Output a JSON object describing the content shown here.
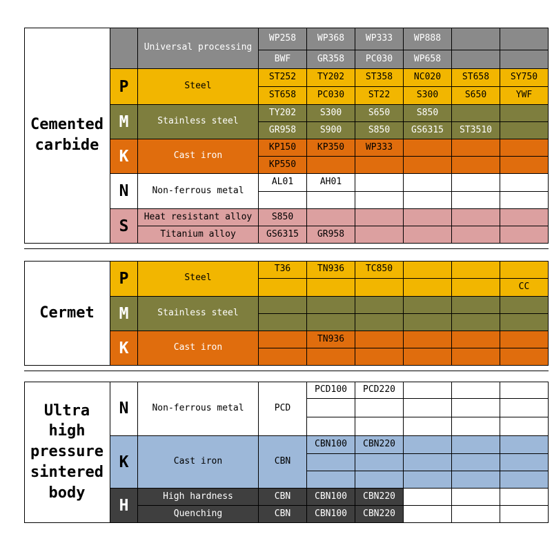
{
  "colors": {
    "gray": "#8A8A8A",
    "gold": "#F2B600",
    "olive": "#7E7E3E",
    "orange": "#E06D0D",
    "pink": "#DCA0A0",
    "white": "#FFFFFF",
    "blue": "#9DB8D9",
    "dark": "#3F3F3F"
  },
  "tables": [
    {
      "category": "Cemented\ncarbide",
      "groups": [
        {
          "letter": "",
          "bg": "gray",
          "label_color": "light",
          "grade_color": "light",
          "desc": "Universal processing",
          "rows": [
            {
              "grades": [
                "WP258",
                "WP368",
                "WP333",
                "WP888",
                "",
                ""
              ]
            },
            {
              "grades": [
                "BWF",
                "GR358",
                "PC030",
                "WP658",
                "",
                ""
              ]
            }
          ]
        },
        {
          "letter": "P",
          "bg": "gold",
          "label_color": "dark",
          "grade_color": "dark",
          "desc": "Steel",
          "rows": [
            {
              "grades": [
                "ST252",
                "TY202",
                "ST358",
                "NC020",
                "ST658",
                "SY750"
              ]
            },
            {
              "grades": [
                "ST658",
                "PC030",
                "ST22",
                "S300",
                "S650",
                "YWF"
              ]
            }
          ]
        },
        {
          "letter": "M",
          "bg": "olive",
          "label_color": "light",
          "grade_color": "light",
          "desc": "Stainless steel",
          "rows": [
            {
              "grades": [
                "TY202",
                "S300",
                "S650",
                "S850",
                "",
                ""
              ]
            },
            {
              "grades": [
                "GR958",
                "S900",
                "S850",
                "GS6315",
                "ST3510",
                ""
              ]
            }
          ]
        },
        {
          "letter": "K",
          "bg": "orange",
          "label_color": "light",
          "grade_color": "dark",
          "desc": "Cast iron",
          "rows": [
            {
              "grades": [
                "KP150",
                "KP350",
                "WP333",
                "",
                "",
                ""
              ]
            },
            {
              "grades": [
                "KP550",
                "",
                "",
                "",
                "",
                ""
              ]
            }
          ]
        },
        {
          "letter": "N",
          "bg": "white",
          "label_color": "dark",
          "grade_color": "dark",
          "desc": "Non-ferrous metal",
          "rows": [
            {
              "grades": [
                "AL01",
                "AH01",
                "",
                "",
                "",
                ""
              ]
            },
            {
              "grades": [
                "",
                "",
                "",
                "",
                "",
                ""
              ]
            }
          ]
        },
        {
          "letter": "S",
          "bg": "pink",
          "label_color": "dark",
          "grade_color": "dark",
          "rows": [
            {
              "desc": "Heat resistant alloy",
              "grades": [
                "S850",
                "",
                "",
                "",
                "",
                ""
              ]
            },
            {
              "desc": "Titanium alloy",
              "grades": [
                "GS6315",
                "GR958",
                "",
                "",
                "",
                ""
              ]
            }
          ]
        }
      ]
    },
    {
      "category": "Cermet",
      "groups": [
        {
          "letter": "P",
          "bg": "gold",
          "label_color": "dark",
          "grade_color": "dark",
          "desc": "Steel",
          "rows": [
            {
              "grades": [
                "T36",
                "TN936",
                "TC850",
                "",
                "",
                ""
              ]
            },
            {
              "grades": [
                "",
                "",
                "",
                "",
                "",
                "CC"
              ]
            }
          ]
        },
        {
          "letter": "M",
          "bg": "olive",
          "label_color": "light",
          "grade_color": "light",
          "desc": "Stainless steel",
          "rows": [
            {
              "grades": [
                "",
                "",
                "",
                "",
                "",
                ""
              ]
            },
            {
              "grades": [
                "",
                "",
                "",
                "",
                "",
                ""
              ]
            }
          ]
        },
        {
          "letter": "K",
          "bg": "orange",
          "label_color": "light",
          "grade_color": "dark",
          "desc": "Cast iron",
          "rows": [
            {
              "grades": [
                "",
                "TN936",
                "",
                "",
                "",
                ""
              ]
            },
            {
              "grades": [
                "",
                "",
                "",
                "",
                "",
                ""
              ]
            }
          ]
        }
      ]
    },
    {
      "category": "Ultra\nhigh\npressure\nsintered\nbody",
      "groups": [
        {
          "letter": "N",
          "bg": "white",
          "label_color": "dark",
          "grade_color": "dark",
          "desc": "Non-ferrous metal",
          "lead": "PCD",
          "rows": [
            {
              "grades": [
                "PCD100",
                "PCD220",
                "",
                "",
                ""
              ]
            },
            {
              "grades": [
                "",
                "",
                "",
                "",
                ""
              ]
            },
            {
              "grades": [
                "",
                "",
                "",
                "",
                ""
              ]
            }
          ]
        },
        {
          "letter": "K",
          "bg": "blue",
          "label_color": "dark",
          "grade_color": "dark",
          "desc": "Cast iron",
          "lead": "CBN",
          "rows": [
            {
              "grades": [
                "CBN100",
                "CBN220",
                "",
                "",
                ""
              ]
            },
            {
              "grades": [
                "",
                "",
                "",
                "",
                ""
              ]
            },
            {
              "grades": [
                "",
                "",
                "",
                "",
                ""
              ]
            }
          ]
        },
        {
          "letter": "H",
          "bg": "dark",
          "label_color": "light",
          "grade_color": "light",
          "bg_grade_cols": 3,
          "rows": [
            {
              "desc": "High hardness",
              "grades": [
                "CBN",
                "CBN100",
                "CBN220",
                "",
                "",
                ""
              ]
            },
            {
              "desc": "Quenching",
              "grades": [
                "CBN",
                "CBN100",
                "CBN220",
                "",
                "",
                ""
              ]
            }
          ]
        }
      ]
    }
  ]
}
